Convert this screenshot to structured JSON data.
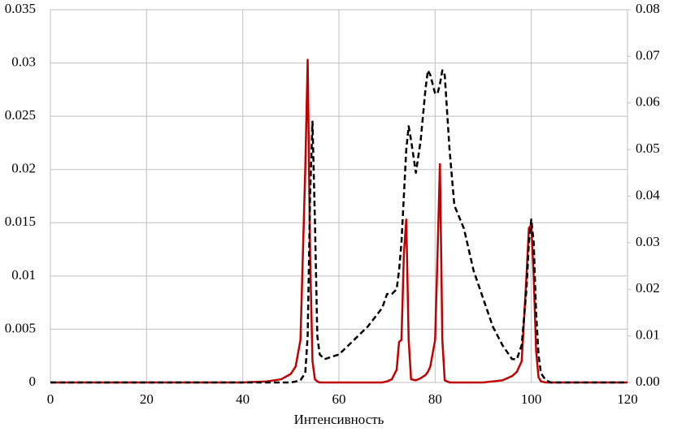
{
  "chart_data": {
    "type": "line",
    "x_label": "Интенсивность",
    "x": [
      0,
      10,
      20,
      30,
      40,
      45,
      48,
      50,
      51,
      52,
      53,
      53.5,
      54,
      54.5,
      55,
      55.5,
      56,
      57,
      60,
      63,
      66,
      69,
      70,
      71,
      72,
      72.5,
      73,
      73.5,
      74,
      74.5,
      75,
      76,
      77,
      78,
      78.5,
      79,
      80,
      80.5,
      81,
      81.5,
      82,
      83,
      84,
      86,
      88,
      90,
      92,
      94,
      96,
      97,
      98,
      99,
      99.5,
      100,
      100.5,
      101,
      101.5,
      102,
      103,
      104,
      110,
      120
    ],
    "series": [
      {
        "color": "#c00000",
        "dash": false,
        "axis": "y",
        "values": [
          0,
          0,
          0,
          0,
          0,
          0.0001,
          0.0003,
          0.0008,
          0.0015,
          0.004,
          0.02,
          0.0303,
          0.012,
          0.002,
          0.0003,
          0.0001,
          0,
          0,
          0,
          0,
          0,
          0,
          0.0001,
          0.0003,
          0.0012,
          0.0038,
          0.004,
          0.012,
          0.0153,
          0.004,
          0.0003,
          0.0002,
          0.0004,
          0.0007,
          0.001,
          0.0015,
          0.004,
          0.012,
          0.0205,
          0.004,
          0.0002,
          0,
          0,
          0,
          0,
          0,
          0.0001,
          0.0002,
          0.0006,
          0.001,
          0.002,
          0.01,
          0.0145,
          0.0148,
          0.01,
          0.003,
          0.0005,
          0.0001,
          0,
          0,
          0,
          0
        ]
      },
      {
        "color": "#000000",
        "dash": true,
        "axis": "y2",
        "values": [
          0,
          0,
          0,
          0,
          0,
          0,
          0,
          0,
          0.0002,
          0.0005,
          0.002,
          0.01,
          0.04,
          0.056,
          0.035,
          0.01,
          0.006,
          0.005,
          0.006,
          0.009,
          0.012,
          0.016,
          0.019,
          0.019,
          0.02,
          0.024,
          0.03,
          0.04,
          0.05,
          0.055,
          0.052,
          0.045,
          0.052,
          0.063,
          0.067,
          0.066,
          0.062,
          0.062,
          0.064,
          0.067,
          0.066,
          0.05,
          0.038,
          0.033,
          0.024,
          0.018,
          0.012,
          0.008,
          0.005,
          0.005,
          0.008,
          0.02,
          0.03,
          0.035,
          0.03,
          0.015,
          0.006,
          0.002,
          0.0005,
          0,
          0,
          0
        ]
      }
    ],
    "xlim": [
      0,
      120
    ],
    "xticks": [
      0,
      20,
      40,
      60,
      80,
      100,
      120
    ],
    "ylim": [
      0,
      0.035
    ],
    "yticks": [
      0,
      0.005,
      0.01,
      0.015,
      0.02,
      0.025,
      0.03,
      0.035
    ],
    "y2lim": [
      0,
      0.08
    ],
    "y2ticks": [
      {
        "value": 0,
        "label": "0.00"
      },
      {
        "value": 0.01,
        "label": "0.01"
      },
      {
        "value": 0.02,
        "label": "0.02"
      },
      {
        "value": 0.03,
        "label": "0.03"
      },
      {
        "value": 0.04,
        "label": "0.04"
      },
      {
        "value": 0.05,
        "label": "0.05"
      },
      {
        "value": 0.06,
        "label": "0.06"
      },
      {
        "value": 0.07,
        "label": "0.07"
      },
      {
        "value": 0.08,
        "label": "0.08"
      }
    ],
    "grid": true
  }
}
